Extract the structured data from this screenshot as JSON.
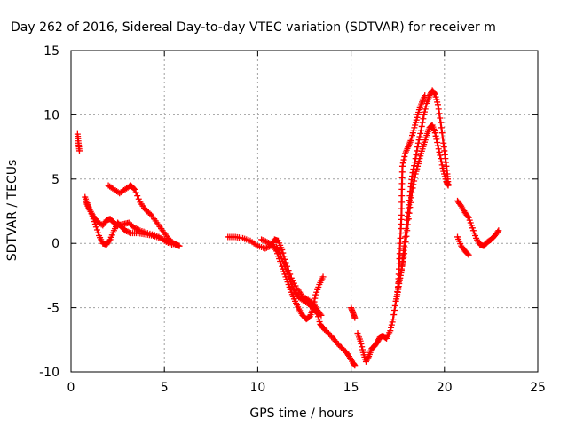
{
  "chart_data": {
    "type": "scatter",
    "title": "Day 262 of 2016, Sidereal Day-to-day VTEC variation (SDTVAR) for receiver m",
    "xlabel": "GPS time / hours",
    "ylabel": "SDTVAR / TECUs",
    "xlim": [
      0,
      25
    ],
    "ylim": [
      -10,
      15
    ],
    "x_ticks": [
      0,
      5,
      10,
      15,
      20,
      25
    ],
    "y_ticks": [
      -10,
      -5,
      0,
      5,
      10,
      15
    ],
    "x_tick_labels": [
      "0",
      "5",
      "10",
      "15",
      "20",
      "25"
    ],
    "y_tick_labels": [
      "-10",
      "-5",
      "0",
      "5",
      "10",
      "15"
    ],
    "grid": true,
    "marker": "+",
    "series": [
      {
        "name": "SDTVAR",
        "color": "#ff0000",
        "segments": [
          [
            [
              0.35,
              8.5
            ],
            [
              0.4,
              7.8
            ],
            [
              0.45,
              7.2
            ]
          ],
          [
            [
              0.75,
              3.6
            ],
            [
              0.9,
              3.0
            ],
            [
              1.1,
              2.3
            ],
            [
              1.3,
              1.5
            ],
            [
              1.5,
              0.6
            ],
            [
              1.7,
              0.0
            ],
            [
              1.9,
              -0.1
            ],
            [
              2.1,
              0.3
            ],
            [
              2.3,
              1.0
            ],
            [
              2.5,
              1.6
            ],
            [
              2.7,
              1.3
            ],
            [
              2.9,
              1.0
            ],
            [
              3.2,
              0.8
            ],
            [
              3.6,
              0.8
            ],
            [
              4.0,
              0.7
            ],
            [
              4.4,
              0.6
            ],
            [
              4.8,
              0.4
            ],
            [
              5.2,
              0.1
            ],
            [
              5.6,
              -0.1
            ],
            [
              5.8,
              -0.2
            ]
          ],
          [
            [
              0.8,
              3.2
            ],
            [
              1.0,
              2.6
            ],
            [
              1.2,
              2.1
            ],
            [
              1.4,
              1.7
            ],
            [
              1.7,
              1.4
            ],
            [
              1.9,
              1.8
            ],
            [
              2.1,
              1.9
            ],
            [
              2.3,
              1.6
            ],
            [
              2.5,
              1.4
            ],
            [
              2.8,
              1.5
            ],
            [
              3.1,
              1.6
            ],
            [
              3.4,
              1.2
            ],
            [
              3.7,
              1.0
            ],
            [
              4.1,
              0.8
            ],
            [
              4.6,
              0.6
            ],
            [
              5.0,
              0.2
            ],
            [
              5.4,
              -0.1
            ]
          ],
          [
            [
              2.0,
              4.5
            ],
            [
              2.3,
              4.2
            ],
            [
              2.6,
              3.9
            ],
            [
              2.9,
              4.2
            ],
            [
              3.2,
              4.5
            ],
            [
              3.4,
              4.2
            ],
            [
              3.7,
              3.2
            ],
            [
              4.0,
              2.6
            ],
            [
              4.3,
              2.2
            ],
            [
              4.6,
              1.6
            ],
            [
              4.9,
              1.0
            ],
            [
              5.2,
              0.4
            ],
            [
              5.5,
              0.0
            ],
            [
              5.8,
              -0.2
            ]
          ],
          [
            [
              8.4,
              0.5
            ],
            [
              8.8,
              0.5
            ],
            [
              9.2,
              0.4
            ],
            [
              9.6,
              0.2
            ],
            [
              10.0,
              -0.2
            ],
            [
              10.4,
              -0.4
            ],
            [
              10.7,
              -0.2
            ],
            [
              10.9,
              0.3
            ],
            [
              11.1,
              0.2
            ],
            [
              11.3,
              -0.5
            ],
            [
              11.5,
              -1.5
            ],
            [
              11.8,
              -2.7
            ],
            [
              12.1,
              -3.5
            ],
            [
              12.4,
              -4.1
            ],
            [
              12.7,
              -4.4
            ],
            [
              13.0,
              -4.7
            ],
            [
              13.2,
              -5.2
            ],
            [
              13.4,
              -5.6
            ]
          ],
          [
            [
              10.2,
              0.3
            ],
            [
              10.5,
              0.1
            ],
            [
              10.8,
              -0.1
            ],
            [
              11.0,
              -0.6
            ],
            [
              11.2,
              -1.4
            ],
            [
              11.4,
              -2.2
            ],
            [
              11.6,
              -3.0
            ],
            [
              11.8,
              -3.8
            ],
            [
              12.0,
              -4.5
            ],
            [
              12.2,
              -5.1
            ],
            [
              12.4,
              -5.6
            ],
            [
              12.6,
              -5.9
            ],
            [
              12.8,
              -5.7
            ],
            [
              12.95,
              -5.1
            ],
            [
              13.1,
              -4.0
            ],
            [
              13.3,
              -3.2
            ],
            [
              13.5,
              -2.6
            ]
          ],
          [
            [
              11.0,
              -0.3
            ],
            [
              11.2,
              -0.8
            ],
            [
              11.4,
              -1.6
            ],
            [
              11.6,
              -2.4
            ],
            [
              11.8,
              -3.2
            ],
            [
              12.0,
              -3.8
            ],
            [
              12.2,
              -4.2
            ],
            [
              12.5,
              -4.5
            ],
            [
              12.8,
              -4.8
            ],
            [
              13.0,
              -5.1
            ],
            [
              13.2,
              -5.5
            ],
            [
              13.35,
              -6.3
            ],
            [
              13.5,
              -6.6
            ],
            [
              13.8,
              -7.0
            ],
            [
              14.1,
              -7.5
            ],
            [
              14.4,
              -8.0
            ],
            [
              14.7,
              -8.4
            ],
            [
              14.9,
              -8.8
            ],
            [
              15.1,
              -9.3
            ],
            [
              15.2,
              -9.5
            ]
          ],
          [
            [
              15.0,
              -5.0
            ],
            [
              15.1,
              -5.4
            ],
            [
              15.2,
              -5.8
            ]
          ],
          [
            [
              15.35,
              -7.0
            ],
            [
              15.5,
              -7.6
            ],
            [
              15.65,
              -8.5
            ],
            [
              15.8,
              -9.2
            ],
            [
              15.95,
              -8.8
            ],
            [
              16.1,
              -8.2
            ],
            [
              16.25,
              -8.0
            ],
            [
              16.4,
              -7.7
            ],
            [
              16.55,
              -7.3
            ],
            [
              16.7,
              -7.2
            ],
            [
              16.9,
              -7.4
            ],
            [
              17.1,
              -6.8
            ],
            [
              17.25,
              -5.9
            ],
            [
              17.4,
              -4.5
            ],
            [
              17.55,
              -3.0
            ],
            [
              17.7,
              -2.0
            ],
            [
              17.85,
              -0.8
            ],
            [
              18.0,
              1.0
            ],
            [
              18.15,
              2.8
            ],
            [
              18.3,
              4.3
            ],
            [
              18.45,
              5.4
            ],
            [
              18.6,
              6.2
            ],
            [
              18.75,
              7.0
            ],
            [
              18.9,
              7.7
            ],
            [
              19.05,
              8.4
            ],
            [
              19.2,
              9.0
            ],
            [
              19.35,
              9.2
            ],
            [
              19.5,
              8.6
            ],
            [
              19.65,
              7.6
            ],
            [
              19.8,
              6.6
            ],
            [
              19.95,
              5.6
            ],
            [
              20.1,
              4.8
            ],
            [
              20.2,
              4.5
            ]
          ],
          [
            [
              17.4,
              -4.5
            ],
            [
              17.5,
              -3.8
            ],
            [
              17.6,
              -2.9
            ],
            [
              17.7,
              -2.1
            ],
            [
              17.8,
              -0.9
            ],
            [
              17.9,
              0.5
            ],
            [
              18.0,
              1.8
            ],
            [
              18.1,
              3.0
            ],
            [
              18.2,
              4.4
            ],
            [
              18.3,
              5.5
            ],
            [
              18.45,
              6.6
            ],
            [
              18.6,
              7.8
            ],
            [
              18.75,
              8.8
            ],
            [
              18.9,
              10.0
            ],
            [
              19.05,
              10.9
            ],
            [
              19.2,
              11.5
            ],
            [
              19.35,
              11.9
            ],
            [
              19.5,
              11.6
            ],
            [
              19.65,
              10.8
            ],
            [
              19.8,
              9.4
            ],
            [
              19.95,
              7.8
            ],
            [
              20.05,
              6.6
            ],
            [
              20.15,
              5.4
            ],
            [
              20.2,
              4.6
            ]
          ],
          [
            [
              17.5,
              -3.8
            ],
            [
              17.55,
              -2.4
            ],
            [
              17.6,
              -0.8
            ],
            [
              17.65,
              0.8
            ],
            [
              17.7,
              2.2
            ],
            [
              17.72,
              4.2
            ],
            [
              17.75,
              6.0
            ],
            [
              17.9,
              7.0
            ],
            [
              18.05,
              7.5
            ],
            [
              18.2,
              8.0
            ],
            [
              18.35,
              8.8
            ],
            [
              18.5,
              9.6
            ],
            [
              18.65,
              10.4
            ],
            [
              18.8,
              11.0
            ],
            [
              18.95,
              11.5
            ]
          ],
          [
            [
              20.7,
              3.3
            ],
            [
              20.9,
              2.9
            ],
            [
              21.1,
              2.4
            ],
            [
              21.3,
              2.0
            ],
            [
              21.5,
              1.2
            ],
            [
              21.7,
              0.4
            ],
            [
              21.9,
              -0.1
            ],
            [
              22.1,
              -0.2
            ],
            [
              22.3,
              0.1
            ],
            [
              22.5,
              0.3
            ],
            [
              22.7,
              0.6
            ],
            [
              22.9,
              1.0
            ]
          ],
          [
            [
              20.7,
              0.5
            ],
            [
              20.9,
              -0.2
            ],
            [
              21.1,
              -0.6
            ],
            [
              21.3,
              -0.9
            ]
          ]
        ]
      }
    ]
  }
}
